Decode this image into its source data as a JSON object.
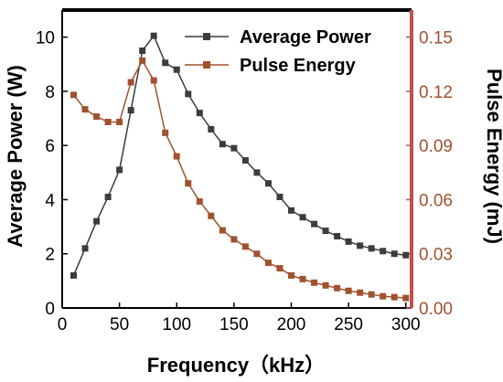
{
  "chart_data": {
    "type": "line",
    "title": "",
    "xlabel": "Frequency（kHz）",
    "ylabel_left": "Average Power (W)",
    "ylabel_right": "Pulse Energy (mJ)",
    "xlim": [
      0,
      305
    ],
    "ylim_left": [
      0,
      11
    ],
    "ylim_right": [
      0,
      0.165
    ],
    "x_ticks": [
      0,
      50,
      100,
      150,
      200,
      250,
      300
    ],
    "y_left_ticks": [
      0,
      2,
      4,
      6,
      8,
      10
    ],
    "y_right_ticks": [
      0.0,
      0.03,
      0.06,
      0.09,
      0.12,
      0.15
    ],
    "y_right_tick_labels": [
      "0.00",
      "0.03",
      "0.06",
      "0.09",
      "0.12",
      "0.15"
    ],
    "grid": false,
    "legend_position": "top-right",
    "series": [
      {
        "name": "Average Power",
        "axis": "left",
        "color": "#3c3c3c",
        "marker": "square",
        "x": [
          10,
          20,
          30,
          40,
          50,
          60,
          70,
          80,
          90,
          100,
          110,
          120,
          130,
          140,
          150,
          160,
          170,
          180,
          190,
          200,
          210,
          220,
          230,
          240,
          250,
          260,
          270,
          280,
          290,
          300
        ],
        "y": [
          1.2,
          2.2,
          3.2,
          4.1,
          5.1,
          7.3,
          9.5,
          10.05,
          9.05,
          8.8,
          7.9,
          7.2,
          6.6,
          6.05,
          5.9,
          5.45,
          5.0,
          4.6,
          4.1,
          3.6,
          3.35,
          3.1,
          2.85,
          2.65,
          2.45,
          2.3,
          2.2,
          2.1,
          2.0,
          1.95
        ]
      },
      {
        "name": "Pulse Energy",
        "axis": "right",
        "color": "#a0522d",
        "marker": "square",
        "x": [
          10,
          20,
          30,
          40,
          50,
          60,
          70,
          80,
          90,
          100,
          110,
          120,
          130,
          140,
          150,
          160,
          170,
          180,
          190,
          200,
          210,
          220,
          230,
          240,
          250,
          260,
          270,
          280,
          290,
          300
        ],
        "y": [
          0.118,
          0.11,
          0.106,
          0.103,
          0.103,
          0.125,
          0.137,
          0.126,
          0.097,
          0.084,
          0.069,
          0.059,
          0.051,
          0.043,
          0.038,
          0.034,
          0.03,
          0.025,
          0.022,
          0.018,
          0.016,
          0.014,
          0.0125,
          0.011,
          0.0095,
          0.0085,
          0.0075,
          0.0065,
          0.006,
          0.0055
        ]
      }
    ]
  },
  "colors": {
    "frame": "#000000",
    "right_axis": "#c0504d",
    "right_tick_text": "#a0522d"
  }
}
